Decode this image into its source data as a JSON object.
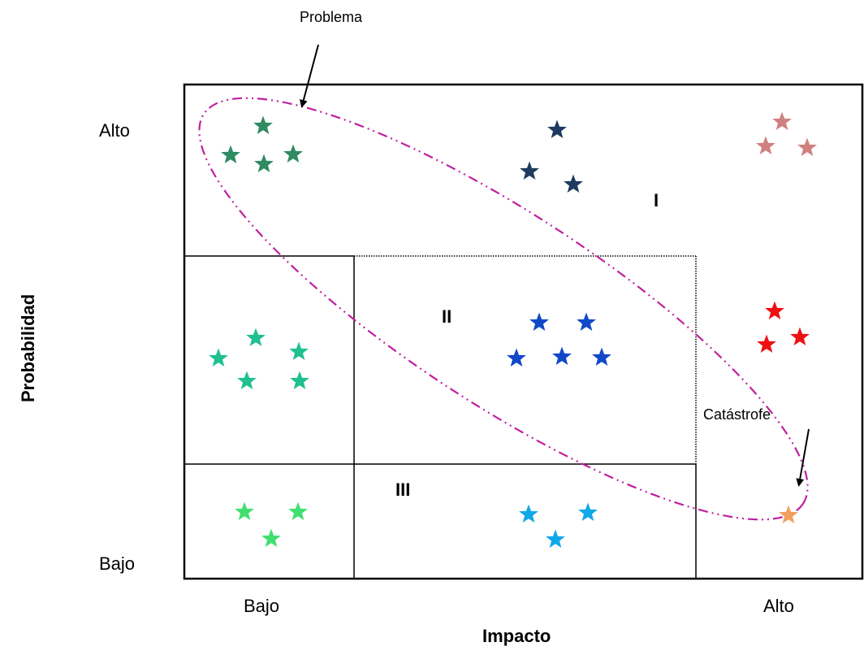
{
  "labels": {
    "y_axis_title": "Probabilidad",
    "x_axis_title": "Impacto",
    "y_high": "Alto",
    "y_low": "Bajo",
    "x_low": "Bajo",
    "x_high": "Alto",
    "zone_1": "I",
    "zone_2": "II",
    "zone_3": "III",
    "problem_callout": "Problema",
    "catastrophe_callout": "Catástrofe"
  },
  "colors": {
    "ellipse": "#C020A0",
    "group_a": "#2E8B62",
    "group_b": "#1F3A5F",
    "group_c": "#D08080",
    "group_d": "#20C090",
    "group_e": "#1048C8",
    "group_f": "#EE1111",
    "group_g": "#40E070",
    "group_h": "#10A8E8",
    "group_i": "#F0A060"
  },
  "star_groups": [
    {
      "group": "group_a",
      "count": 4
    },
    {
      "group": "group_b",
      "count": 3
    },
    {
      "group": "group_c",
      "count": 3
    },
    {
      "group": "group_d",
      "count": 5
    },
    {
      "group": "group_e",
      "count": 5
    },
    {
      "group": "group_f",
      "count": 3
    },
    {
      "group": "group_g",
      "count": 3
    },
    {
      "group": "group_h",
      "count": 3
    },
    {
      "group": "group_i",
      "count": 1
    }
  ]
}
